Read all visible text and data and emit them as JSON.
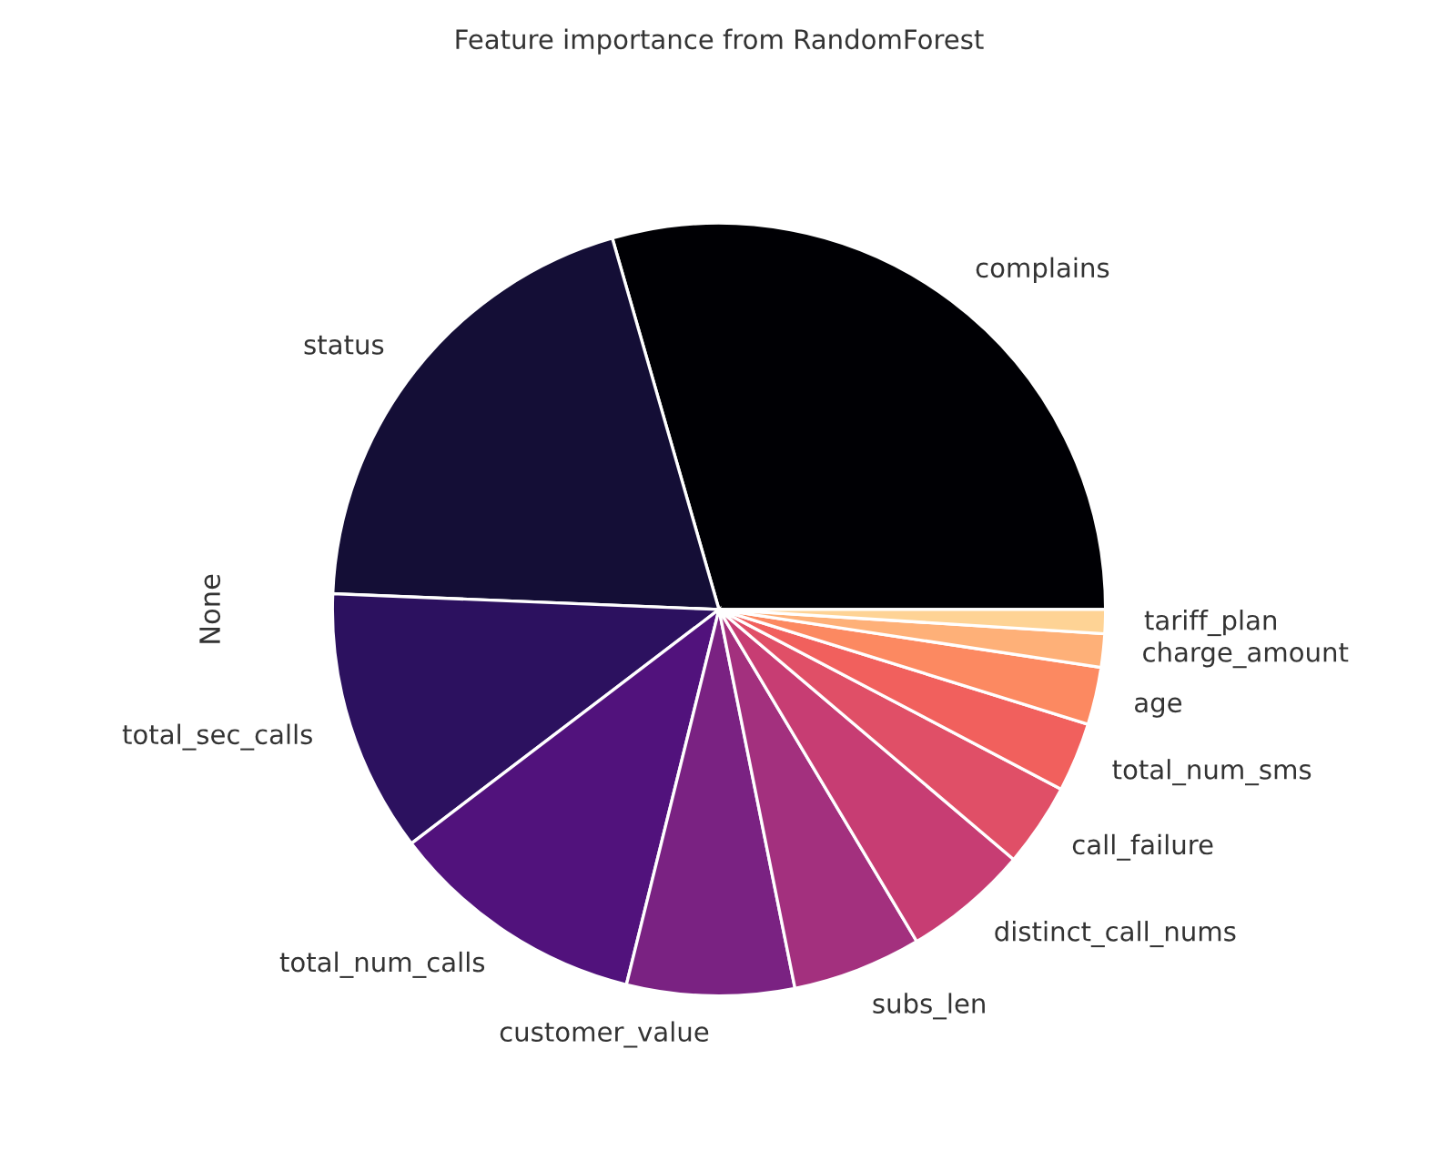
{
  "chart_data": {
    "type": "pie",
    "title": "Feature importance from RandomForest",
    "ylabel": "None",
    "categories": [
      "complains",
      "status",
      "total_sec_calls",
      "total_num_calls",
      "customer_value",
      "subs_len",
      "distinct_call_nums",
      "call_failure",
      "total_num_sms",
      "age",
      "charge_amount",
      "tariff_plan"
    ],
    "values": [
      29.45,
      19.9,
      11.0,
      10.8,
      7.0,
      5.4,
      5.25,
      3.5,
      2.9,
      2.4,
      1.4,
      1.0
    ],
    "colors": [
      "#000004",
      "#140e36",
      "#2c115f",
      "#51127c",
      "#7a2282",
      "#a3307e",
      "#c73d73",
      "#e04f67",
      "#f1605d",
      "#fc8961",
      "#feb078",
      "#fed395"
    ]
  }
}
